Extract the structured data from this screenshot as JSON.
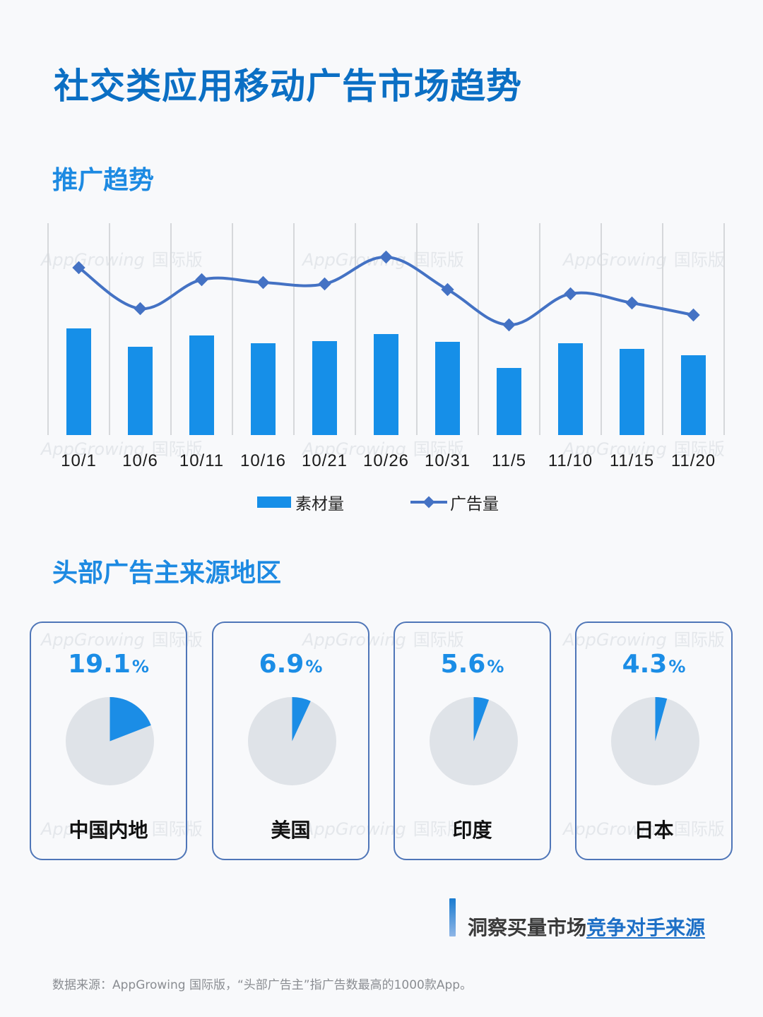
{
  "header": {
    "title": "社交类应用移动广告市场趋势"
  },
  "trend_section": {
    "title": "推广趋势"
  },
  "region_section": {
    "title": "头部广告主来源地区"
  },
  "watermark": {
    "en": "AppGrowing",
    "cn": "国际版"
  },
  "colors": {
    "title": "#0b6fc4",
    "section_title": "#1d8ae2",
    "bar": "#168fe8",
    "line": "#4472c4",
    "pie_fill": "#1b8de6",
    "pie_rest": "#dfe3e8",
    "card_border": "#4f76b8",
    "grid": "#d6d8db"
  },
  "chart_data": [
    {
      "type": "bar+line",
      "title": "推广趋势",
      "categories": [
        "10/1",
        "10/6",
        "10/11",
        "10/16",
        "10/21",
        "10/26",
        "10/31",
        "11/5",
        "11/10",
        "11/15",
        "11/20"
      ],
      "series": [
        {
          "name": "素材量",
          "type": "bar",
          "values": [
            151,
            125,
            141,
            130,
            133,
            143,
            132,
            95,
            130,
            122,
            113
          ]
        },
        {
          "name": "广告量",
          "type": "line",
          "values": [
            237,
            179,
            220,
            216,
            214,
            252,
            206,
            156,
            200,
            187,
            170
          ]
        }
      ],
      "xlabel": "",
      "ylabel": "",
      "ylim": [
        0,
        300
      ],
      "value_note": "relative units (no y-axis shown)",
      "grid": "vertical only",
      "legend_position": "bottom"
    },
    {
      "type": "pie",
      "title": "头部广告主来源地区",
      "categories": [
        "中国内地",
        "美国",
        "印度",
        "日本"
      ],
      "values": [
        19.1,
        6.9,
        5.6,
        4.3
      ],
      "unit": "%"
    }
  ],
  "legend": {
    "bar_label": "素材量",
    "line_label": "广告量"
  },
  "regions": [
    {
      "name": "中国内地",
      "value": "19.1",
      "unit": "%"
    },
    {
      "name": "美国",
      "value": "6.9",
      "unit": "%"
    },
    {
      "name": "印度",
      "value": "5.6",
      "unit": "%"
    },
    {
      "name": "日本",
      "value": "4.3",
      "unit": "%"
    }
  ],
  "cta": {
    "prefix": "洞察买量市场",
    "link": "竞争对手来源"
  },
  "footer": {
    "source": "数据来源：AppGrowing 国际版，“头部广告主”指广告数最高的1000款App。"
  }
}
